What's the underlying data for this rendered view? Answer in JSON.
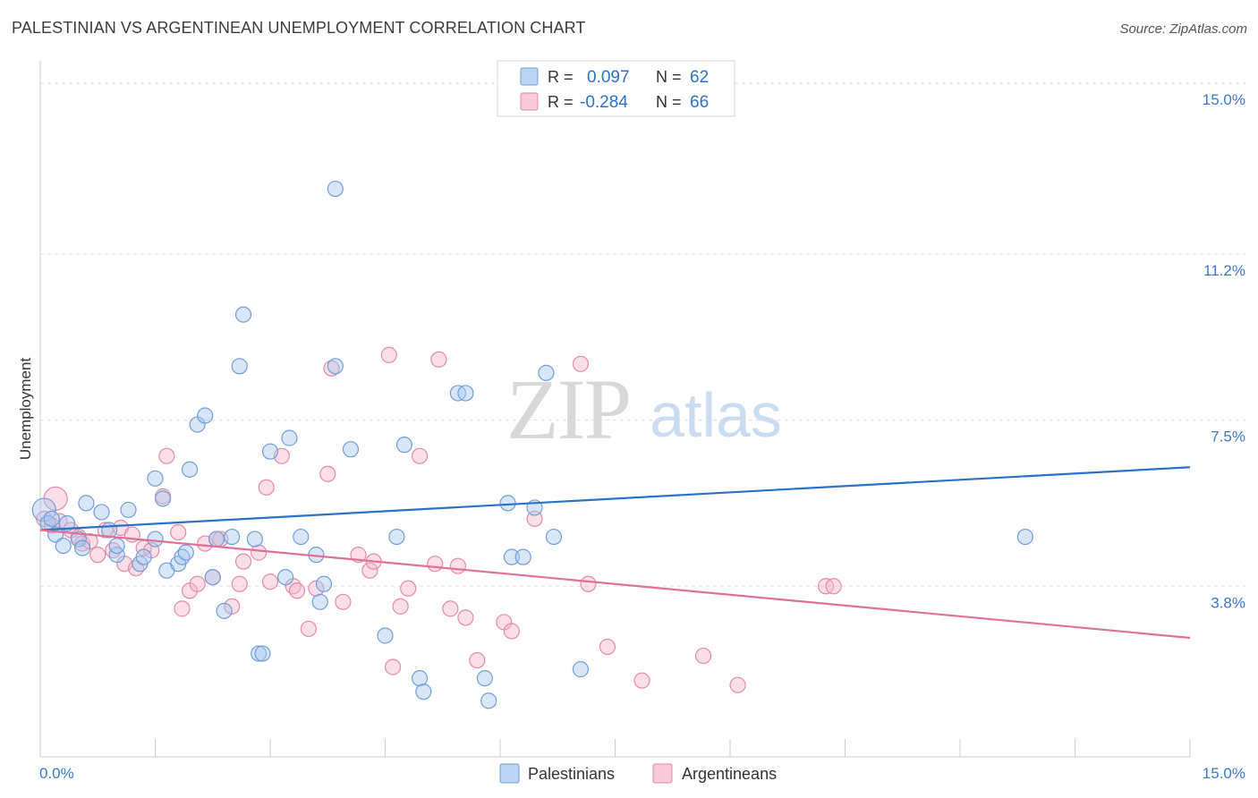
{
  "chart_data": {
    "type": "scatter",
    "title": "PALESTINIAN VS ARGENTINEAN UNEMPLOYMENT CORRELATION CHART",
    "source": "Source: ZipAtlas.com",
    "xlabel": "",
    "ylabel": "Unemployment",
    "xlim": [
      0,
      15
    ],
    "ylim": [
      0,
      15.5
    ],
    "x_tick_labels": [
      "0.0%",
      "15.0%"
    ],
    "y_ticks": [
      {
        "value": 3.8,
        "label": "3.8%"
      },
      {
        "value": 7.5,
        "label": "7.5%"
      },
      {
        "value": 11.2,
        "label": "11.2%"
      },
      {
        "value": 15.0,
        "label": "15.0%"
      }
    ],
    "watermark": {
      "zip": "ZIP",
      "atlas": "atlas"
    },
    "legend": {
      "position": "top-center",
      "entries": [
        {
          "r_label": "R =",
          "r_value": "0.097",
          "n_label": "N =",
          "n_value": "62"
        },
        {
          "r_label": "R =",
          "r_value": "-0.284",
          "n_label": "N =",
          "n_value": "66"
        }
      ]
    },
    "bottom_legend": [
      "Palestinians",
      "Argentineans"
    ],
    "colors": {
      "palestinians_fill": "#a8c8f0",
      "palestinians_stroke": "#6f9fd8",
      "palestinians_line": "#2a72c8",
      "argentineans_fill": "#f5b8cc",
      "argentineans_stroke": "#e68aa8",
      "argentineans_line": "#e0709a",
      "axis_text": "#3a78c8",
      "grid": "#dddddd"
    },
    "series": [
      {
        "name": "Palestinians",
        "trend": {
          "x": [
            0.0,
            15.0
          ],
          "y": [
            5.05,
            6.45
          ]
        },
        "points": [
          [
            0.05,
            5.5
          ],
          [
            0.1,
            5.2
          ],
          [
            0.15,
            5.3
          ],
          [
            0.2,
            4.95
          ],
          [
            0.3,
            4.7
          ],
          [
            0.35,
            5.2
          ],
          [
            0.5,
            4.85
          ],
          [
            0.55,
            4.65
          ],
          [
            0.6,
            5.65
          ],
          [
            0.8,
            5.45
          ],
          [
            0.9,
            5.05
          ],
          [
            1.0,
            4.5
          ],
          [
            1.0,
            4.7
          ],
          [
            1.15,
            5.5
          ],
          [
            1.3,
            4.3
          ],
          [
            1.35,
            4.45
          ],
          [
            1.5,
            4.85
          ],
          [
            1.5,
            6.2
          ],
          [
            1.6,
            5.75
          ],
          [
            1.65,
            4.15
          ],
          [
            1.8,
            4.3
          ],
          [
            1.85,
            4.45
          ],
          [
            1.9,
            4.55
          ],
          [
            1.95,
            6.4
          ],
          [
            2.05,
            7.4
          ],
          [
            2.15,
            7.6
          ],
          [
            2.25,
            4.0
          ],
          [
            2.3,
            4.85
          ],
          [
            2.4,
            3.25
          ],
          [
            2.5,
            4.9
          ],
          [
            2.6,
            8.7
          ],
          [
            2.65,
            9.85
          ],
          [
            2.8,
            4.85
          ],
          [
            2.85,
            2.3
          ],
          [
            2.9,
            2.3
          ],
          [
            3.0,
            6.8
          ],
          [
            3.2,
            4.0
          ],
          [
            3.25,
            7.1
          ],
          [
            3.4,
            4.9
          ],
          [
            3.6,
            4.5
          ],
          [
            3.65,
            3.45
          ],
          [
            3.7,
            3.85
          ],
          [
            3.85,
            8.7
          ],
          [
            3.85,
            12.65
          ],
          [
            4.05,
            6.85
          ],
          [
            4.5,
            2.7
          ],
          [
            4.65,
            4.9
          ],
          [
            4.75,
            6.95
          ],
          [
            4.95,
            1.75
          ],
          [
            5.0,
            1.45
          ],
          [
            5.45,
            8.1
          ],
          [
            5.55,
            8.1
          ],
          [
            5.8,
            1.75
          ],
          [
            5.85,
            1.25
          ],
          [
            6.1,
            5.65
          ],
          [
            6.15,
            4.45
          ],
          [
            6.3,
            4.45
          ],
          [
            6.45,
            5.55
          ],
          [
            6.6,
            8.55
          ],
          [
            6.7,
            4.9
          ],
          [
            7.05,
            1.95
          ],
          [
            12.85,
            4.9
          ]
        ]
      },
      {
        "name": "Argentineans",
        "trend": {
          "x": [
            0.0,
            15.0
          ],
          "y": [
            5.05,
            2.65
          ]
        },
        "points": [
          [
            0.05,
            5.3
          ],
          [
            0.2,
            5.75
          ],
          [
            0.25,
            5.25
          ],
          [
            0.4,
            5.05
          ],
          [
            0.5,
            4.9
          ],
          [
            0.55,
            4.75
          ],
          [
            0.65,
            4.8
          ],
          [
            0.75,
            4.5
          ],
          [
            0.85,
            5.05
          ],
          [
            0.95,
            4.6
          ],
          [
            1.05,
            5.1
          ],
          [
            1.1,
            4.3
          ],
          [
            1.2,
            4.95
          ],
          [
            1.25,
            4.2
          ],
          [
            1.35,
            4.65
          ],
          [
            1.45,
            4.6
          ],
          [
            1.6,
            5.8
          ],
          [
            1.65,
            6.7
          ],
          [
            1.8,
            5.0
          ],
          [
            1.85,
            3.3
          ],
          [
            1.95,
            3.7
          ],
          [
            2.05,
            3.85
          ],
          [
            2.15,
            4.75
          ],
          [
            2.25,
            4.0
          ],
          [
            2.3,
            4.85
          ],
          [
            2.35,
            4.85
          ],
          [
            2.5,
            3.35
          ],
          [
            2.6,
            3.85
          ],
          [
            2.65,
            4.35
          ],
          [
            2.85,
            4.55
          ],
          [
            2.95,
            6.0
          ],
          [
            3.0,
            3.9
          ],
          [
            3.15,
            6.7
          ],
          [
            3.3,
            3.8
          ],
          [
            3.35,
            3.7
          ],
          [
            3.5,
            2.85
          ],
          [
            3.6,
            3.75
          ],
          [
            3.75,
            6.3
          ],
          [
            3.8,
            8.65
          ],
          [
            3.95,
            3.45
          ],
          [
            4.15,
            4.5
          ],
          [
            4.3,
            4.15
          ],
          [
            4.35,
            4.35
          ],
          [
            4.55,
            8.95
          ],
          [
            4.6,
            2.0
          ],
          [
            4.7,
            3.35
          ],
          [
            4.8,
            3.75
          ],
          [
            4.95,
            6.7
          ],
          [
            5.15,
            4.3
          ],
          [
            5.2,
            8.85
          ],
          [
            5.35,
            3.3
          ],
          [
            5.45,
            4.25
          ],
          [
            5.55,
            3.1
          ],
          [
            5.7,
            2.15
          ],
          [
            6.05,
            3.0
          ],
          [
            6.15,
            2.8
          ],
          [
            6.45,
            5.3
          ],
          [
            7.05,
            8.75
          ],
          [
            7.15,
            3.85
          ],
          [
            7.4,
            2.45
          ],
          [
            7.85,
            1.7
          ],
          [
            8.65,
            2.25
          ],
          [
            9.1,
            1.6
          ],
          [
            10.25,
            3.8
          ],
          [
            10.35,
            3.8
          ],
          [
            0.15,
            5.15
          ]
        ]
      }
    ]
  }
}
